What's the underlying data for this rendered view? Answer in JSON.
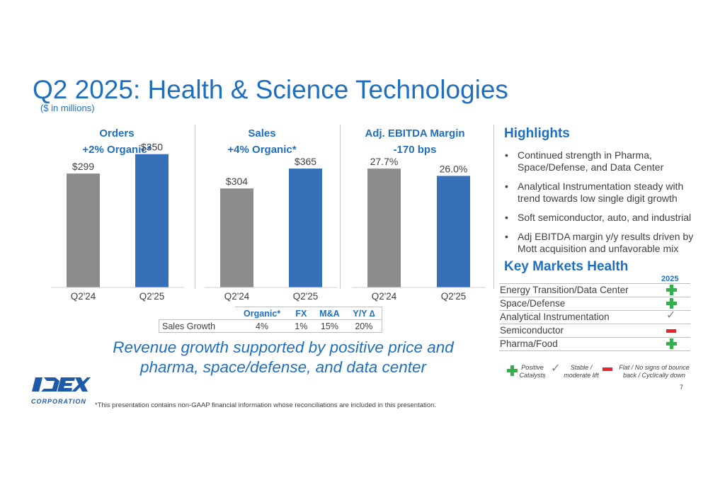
{
  "title": "Q2 2025: Health & Science Technologies",
  "subtitle": "($ in millions)",
  "chart_data": [
    {
      "type": "bar",
      "title": "Orders",
      "subtitle": "+2% Organic*",
      "categories": [
        "Q2'24",
        "Q2'25"
      ],
      "values": [
        299,
        350
      ],
      "value_labels": [
        "$299",
        "$350"
      ],
      "colors": [
        "#8c8c8c",
        "#3670b8"
      ]
    },
    {
      "type": "bar",
      "title": "Sales",
      "subtitle": "+4% Organic*",
      "categories": [
        "Q2'24",
        "Q2'25"
      ],
      "values": [
        304,
        365
      ],
      "value_labels": [
        "$304",
        "$365"
      ],
      "colors": [
        "#8c8c8c",
        "#3670b8"
      ]
    },
    {
      "type": "bar",
      "title": "Adj. EBITDA Margin",
      "subtitle": "-170 bps",
      "categories": [
        "Q2'24",
        "Q2'25"
      ],
      "values": [
        27.7,
        26.0
      ],
      "value_labels": [
        "27.7%",
        "26.0%"
      ],
      "colors": [
        "#8c8c8c",
        "#3670b8"
      ]
    }
  ],
  "sales_growth_table": {
    "headers": [
      "",
      "Organic*",
      "FX",
      "M&A",
      "Y/Y ∆"
    ],
    "row_label": "Sales Growth",
    "values": [
      "4%",
      "1%",
      "15%",
      "20%"
    ]
  },
  "tagline_line1": "Revenue growth supported by positive price and",
  "tagline_line2": "pharma, space/defense, and data center",
  "highlights": {
    "title": "Highlights",
    "items": [
      "Continued strength in Pharma, Space/Defense, and Data Center",
      "Analytical Instrumentation steady with trend towards low single digit growth",
      "Soft semiconductor, auto, and industrial",
      "Adj EBITDA margin y/y results driven by Mott acquisition and unfavorable mix"
    ]
  },
  "key_markets": {
    "title": "Key Markets Health",
    "year": "2025",
    "rows": [
      {
        "label": "Energy Transition/Data Center",
        "status": "positive"
      },
      {
        "label": "Space/Defense",
        "status": "positive"
      },
      {
        "label": "Analytical Instrumentation",
        "status": "stable"
      },
      {
        "label": "Semiconductor",
        "status": "flat"
      },
      {
        "label": "Pharma/Food",
        "status": "positive"
      }
    ],
    "legend": {
      "positive": "Positive Catalysts",
      "stable": "Stable / moderate lift",
      "flat": "Flat / No signs of bounce back / Cyclically down"
    }
  },
  "logo": {
    "name": "IDEX",
    "sub": "CORPORATION"
  },
  "footnote": "*This presentation contains non-GAAP financial information whose reconciliations are included in this presentation.",
  "page_number": "7",
  "colors": {
    "accent": "#1f6fc0",
    "bar_prior": "#8c8c8c",
    "bar_current": "#3670b8",
    "positive": "#33b04a",
    "flat": "#e8262e"
  }
}
